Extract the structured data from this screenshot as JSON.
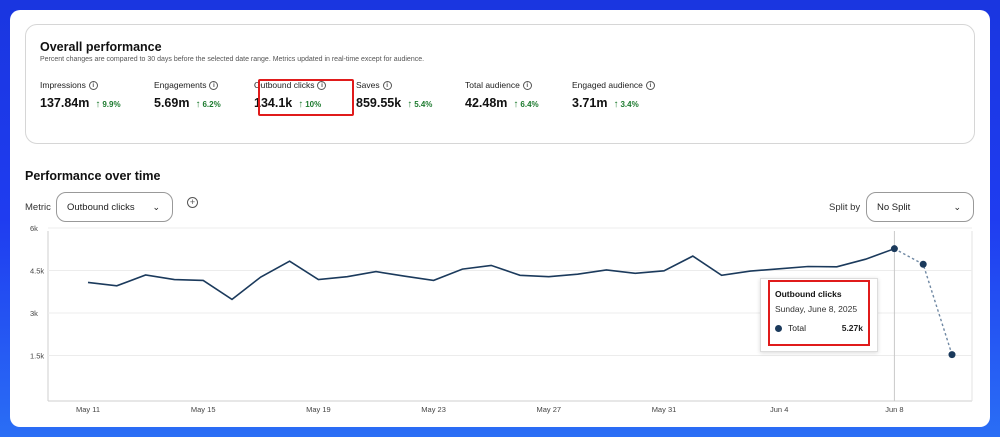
{
  "overall": {
    "title": "Overall performance",
    "subtitle": "Percent changes are compared to 30 days before the selected date range. Metrics updated in real-time except for audience.",
    "metrics": [
      {
        "label": "Impressions",
        "value": "137.84m",
        "change": "9.9%"
      },
      {
        "label": "Engagements",
        "value": "5.69m",
        "change": "6.2%"
      },
      {
        "label": "Outbound clicks",
        "value": "134.1k",
        "change": "10%"
      },
      {
        "label": "Saves",
        "value": "859.55k",
        "change": "5.4%"
      },
      {
        "label": "Total audience",
        "value": "42.48m",
        "change": "6.4%"
      },
      {
        "label": "Engaged audience",
        "value": "3.71m",
        "change": "3.4%"
      }
    ]
  },
  "performance": {
    "title": "Performance over time",
    "metric_label": "Metric",
    "metric_value": "Outbound clicks",
    "split_label": "Split by",
    "split_value": "No Split"
  },
  "tooltip": {
    "title": "Outbound clicks",
    "date": "Sunday, June 8, 2025",
    "series_name": "Total",
    "series_value": "5.27k"
  },
  "colors": {
    "line": "#1b3a5c",
    "highlight": "#e01b1b",
    "positive": "#1c7a2e"
  },
  "chart_data": {
    "type": "line",
    "title": "Performance over time",
    "ylabel": "Outbound clicks",
    "ylim": [
      0,
      6000
    ],
    "yticks": [
      1500,
      3000,
      4500,
      6000
    ],
    "ytick_labels": [
      "1.5k",
      "3k",
      "4.5k",
      "6k"
    ],
    "xtick_labels": [
      "May 11",
      "May 15",
      "May 19",
      "May 23",
      "May 27",
      "May 31",
      "Jun 4",
      "Jun 8"
    ],
    "x": [
      "May 11",
      "May 12",
      "May 13",
      "May 14",
      "May 15",
      "May 16",
      "May 17",
      "May 18",
      "May 19",
      "May 20",
      "May 21",
      "May 22",
      "May 23",
      "May 24",
      "May 25",
      "May 26",
      "May 27",
      "May 28",
      "May 29",
      "May 30",
      "May 31",
      "Jun 1",
      "Jun 2",
      "Jun 3",
      "Jun 4",
      "Jun 5",
      "Jun 6",
      "Jun 7",
      "Jun 8",
      "Jun 9",
      "Jun 10"
    ],
    "series": [
      {
        "name": "Total",
        "values": [
          4080,
          3960,
          4340,
          4180,
          4150,
          3480,
          4270,
          4830,
          4180,
          4280,
          4460,
          4300,
          4150,
          4550,
          4680,
          4330,
          4280,
          4370,
          4520,
          4400,
          4490,
          5010,
          4330,
          4480,
          4560,
          4640,
          4630,
          4900,
          5270,
          4720,
          1530
        ],
        "projected_from_index": 28
      }
    ],
    "highlight_x": "Jun 8"
  }
}
